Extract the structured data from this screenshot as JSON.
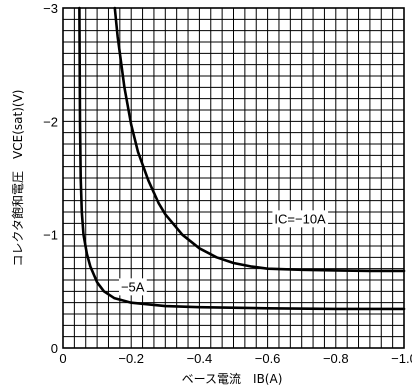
{
  "chart_data": {
    "type": "line",
    "xlabel": "ベース電流　IB(A)",
    "ylabel": "コレクタ飽和電圧　VCE(sat)(V)",
    "xlim": [
      0,
      -1.0
    ],
    "ylim": [
      0,
      -3
    ],
    "x_ticks": [
      {
        "value": 0,
        "label": "0"
      },
      {
        "value": -0.2,
        "label": "−0.2"
      },
      {
        "value": -0.4,
        "label": "−0.4"
      },
      {
        "value": -0.6,
        "label": "−0.6"
      },
      {
        "value": -0.8,
        "label": "−0.8"
      },
      {
        "value": -1.0,
        "label": "−1.0"
      }
    ],
    "y_ticks": [
      {
        "value": 0,
        "label": "0"
      },
      {
        "value": -1,
        "label": "−1"
      },
      {
        "value": -2,
        "label": "−2"
      },
      {
        "value": -3,
        "label": "−3"
      }
    ],
    "grid": true,
    "series": [
      {
        "name": "IC=−10A",
        "label_at": {
          "x": -0.62,
          "y": -1.1
        },
        "x": [
          -0.152,
          -0.16,
          -0.18,
          -0.2,
          -0.22,
          -0.25,
          -0.28,
          -0.3,
          -0.35,
          -0.4,
          -0.45,
          -0.5,
          -0.55,
          -0.6,
          -0.7,
          -0.8,
          -0.9,
          -1.0
        ],
        "y": [
          -3.0,
          -2.75,
          -2.3,
          -1.97,
          -1.73,
          -1.48,
          -1.28,
          -1.18,
          -1.0,
          -0.88,
          -0.8,
          -0.75,
          -0.72,
          -0.7,
          -0.69,
          -0.685,
          -0.68,
          -0.68
        ]
      },
      {
        "name": "−5A",
        "label_at": {
          "x": -0.17,
          "y": -0.5
        },
        "x": [
          -0.048,
          -0.049,
          -0.05,
          -0.052,
          -0.055,
          -0.06,
          -0.07,
          -0.08,
          -0.1,
          -0.12,
          -0.15,
          -0.2,
          -0.3,
          -0.4,
          -0.6,
          -0.8,
          -1.0
        ],
        "y": [
          -3.0,
          -2.5,
          -2.0,
          -1.5,
          -1.2,
          -1.0,
          -0.83,
          -0.72,
          -0.58,
          -0.5,
          -0.44,
          -0.4,
          -0.37,
          -0.36,
          -0.35,
          -0.345,
          -0.345
        ]
      }
    ]
  }
}
